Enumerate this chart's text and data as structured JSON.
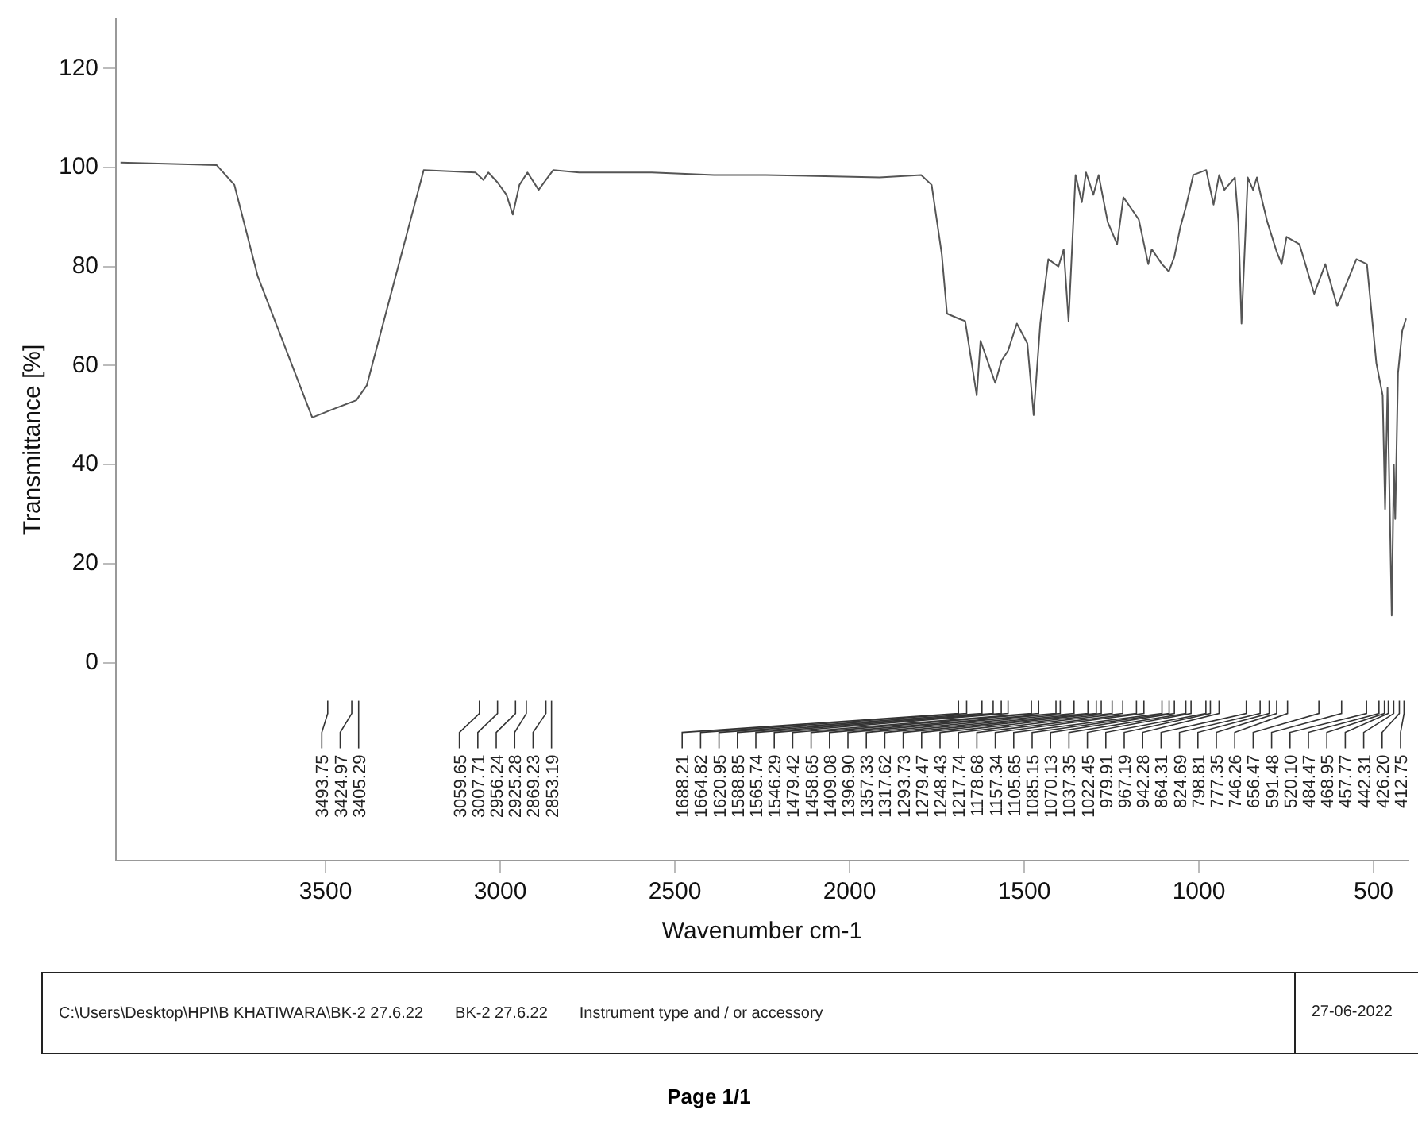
{
  "chart_data": {
    "type": "line",
    "xlabel": "Wavenumber cm-1",
    "ylabel": "Transmittance [%]",
    "xlim": [
      4100,
      400
    ],
    "xticks": [
      3500,
      3000,
      2500,
      2000,
      1500,
      1000,
      500
    ],
    "ylim": [
      -40,
      130
    ],
    "yticks": [
      0,
      20,
      40,
      60,
      80,
      100,
      120
    ],
    "grid": false,
    "legend": false,
    "series": [
      {
        "color": "#555555",
        "x": [
          4087,
          3812,
          3761,
          3694,
          3538,
          3486,
          3412,
          3382,
          3219,
          3071,
          3048,
          3034,
          3007.71,
          2982,
          2964,
          2945,
          2922,
          2890,
          2869.23,
          2848,
          2774,
          2566,
          2388,
          2240,
          1914,
          1795,
          1765,
          1736,
          1721,
          1688.21,
          1669,
          1636,
          1625,
          1583,
          1565,
          1546.29,
          1521,
          1491,
          1473,
          1454,
          1431,
          1402,
          1387,
          1373,
          1353,
          1335,
          1323,
          1302,
          1287,
          1261,
          1234,
          1216,
          1172,
          1145,
          1135,
          1105.65,
          1086,
          1070.13,
          1053,
          1037.35,
          1016,
          979,
          958,
          942,
          927,
          897,
          887,
          878,
          860,
          845,
          834,
          824.69,
          804,
          777.35,
          763,
          749,
          712,
          670,
          638,
          604,
          549,
          519,
          492,
          474,
          467,
          460,
          448,
          442,
          438,
          430,
          418,
          407
        ],
        "values": [
          101,
          100.5,
          96.5,
          78,
          49.5,
          51,
          53,
          56,
          99.5,
          99,
          97.5,
          99,
          97,
          94.5,
          90.5,
          96.5,
          99,
          95.5,
          97.5,
          99.5,
          99,
          99,
          98.5,
          98.5,
          98,
          98.5,
          96.5,
          82.5,
          70.5,
          69.5,
          69,
          54,
          65,
          56.5,
          61,
          63,
          68.5,
          64.5,
          50,
          68.5,
          81.5,
          80,
          83.5,
          69,
          98.5,
          93,
          99,
          94.5,
          98.5,
          89,
          84.5,
          94,
          89.5,
          80.5,
          83.5,
          80.5,
          79,
          82,
          88,
          92,
          98.5,
          99.5,
          92.5,
          98.5,
          95.5,
          98,
          89,
          68.5,
          98,
          95.5,
          98,
          95,
          89,
          83,
          80.5,
          86,
          84.5,
          74.5,
          80.5,
          72,
          81.5,
          80.5,
          60.5,
          54,
          31,
          55.5,
          9.5,
          40,
          29,
          58.5,
          67,
          69.5
        ]
      }
    ],
    "annotations": [
      {
        "text": "3493.75",
        "x": 3493.75
      },
      {
        "text": "3424.97",
        "x": 3424.97
      },
      {
        "text": "3405.29",
        "x": 3405.29
      },
      {
        "text": "3059.65",
        "x": 3059.65
      },
      {
        "text": "3007.71",
        "x": 3007.71
      },
      {
        "text": "2956.24",
        "x": 2956.24
      },
      {
        "text": "2925.28",
        "x": 2925.28
      },
      {
        "text": "2869.23",
        "x": 2869.23
      },
      {
        "text": "2853.19",
        "x": 2853.19
      },
      {
        "text": "1688.21",
        "x": 1688.21
      },
      {
        "text": "1664.82",
        "x": 1664.82
      },
      {
        "text": "1620.95",
        "x": 1620.95
      },
      {
        "text": "1588.85",
        "x": 1588.85
      },
      {
        "text": "1565.74",
        "x": 1565.74
      },
      {
        "text": "1546.29",
        "x": 1546.29
      },
      {
        "text": "1479.42",
        "x": 1479.42
      },
      {
        "text": "1458.65",
        "x": 1458.65
      },
      {
        "text": "1409.08",
        "x": 1409.08
      },
      {
        "text": "1396.90",
        "x": 1396.9
      },
      {
        "text": "1357.33",
        "x": 1357.33
      },
      {
        "text": "1317.62",
        "x": 1317.62
      },
      {
        "text": "1293.73",
        "x": 1293.73
      },
      {
        "text": "1279.47",
        "x": 1279.47
      },
      {
        "text": "1248.43",
        "x": 1248.43
      },
      {
        "text": "1217.74",
        "x": 1217.74
      },
      {
        "text": "1178.68",
        "x": 1178.68
      },
      {
        "text": "1157.34",
        "x": 1157.34
      },
      {
        "text": "1105.65",
        "x": 1105.65
      },
      {
        "text": "1085.15",
        "x": 1085.15
      },
      {
        "text": "1070.13",
        "x": 1070.13
      },
      {
        "text": "1037.35",
        "x": 1037.35
      },
      {
        "text": "1022.45",
        "x": 1022.45
      },
      {
        "text": "979.91",
        "x": 979.91
      },
      {
        "text": "967.19",
        "x": 967.19
      },
      {
        "text": "942.28",
        "x": 942.28
      },
      {
        "text": "864.31",
        "x": 864.31
      },
      {
        "text": "824.69",
        "x": 824.69
      },
      {
        "text": "798.81",
        "x": 798.81
      },
      {
        "text": "777.35",
        "x": 777.35
      },
      {
        "text": "746.26",
        "x": 746.26
      },
      {
        "text": "656.47",
        "x": 656.47
      },
      {
        "text": "591.48",
        "x": 591.48
      },
      {
        "text": "520.10",
        "x": 520.1
      },
      {
        "text": "484.47",
        "x": 484.47
      },
      {
        "text": "468.95",
        "x": 468.95
      },
      {
        "text": "457.77",
        "x": 457.77
      },
      {
        "text": "442.31",
        "x": 442.31
      },
      {
        "text": "426.20",
        "x": 426.2
      },
      {
        "text": "412.75",
        "x": 412.75
      },
      "C:\\Users\\Desktop\\HPI\\B KHATIWARA\\BK-2 27.6.22",
      "BK-2 27.6.22",
      "Instrument type and / or accessory",
      "27-06-2022",
      "Page 1/1"
    ]
  }
}
